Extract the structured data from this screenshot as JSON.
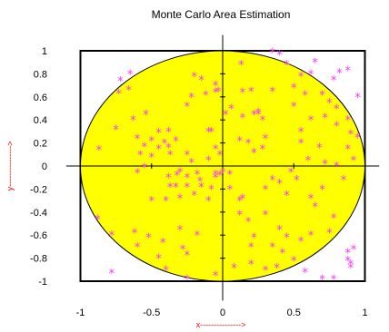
{
  "chart_data": {
    "type": "scatter",
    "title": "Monte Carlo Area Estimation",
    "xlabel": "x--------------->",
    "ylabel": "y--------------->",
    "xlim": [
      -1.1,
      1.1
    ],
    "ylim": [
      -1.2,
      1.2
    ],
    "xticks": [
      -1,
      -0.5,
      0,
      0.5,
      1
    ],
    "xtick_labels": [
      "-1",
      "-0.5",
      "0",
      "0.5",
      "1"
    ],
    "yticks": [
      1,
      0.8,
      0.6,
      0.4,
      0.2,
      0,
      -0.2,
      -0.4,
      -0.6,
      -0.8,
      -1
    ],
    "ytick_labels": [
      "1",
      "0.8",
      "0.6",
      "0.4",
      "0.2",
      "0",
      "-0.2",
      "-0.4",
      "-0.6",
      "-0.8",
      "-1"
    ],
    "grid": false,
    "shapes": {
      "square": {
        "xmin": -1,
        "xmax": 1,
        "ymin": -1,
        "ymax": 1
      },
      "circle": {
        "cx": 0,
        "cy": 0,
        "r": 1
      }
    },
    "colors": {
      "circle_fill": "#ffff00",
      "marker": "#ff33ff",
      "axis": "#000000",
      "label_x": "#ff0000",
      "label_y": "#ff0000"
    },
    "marker": "asterisk",
    "points": [
      [
        -0.72,
        0.74
      ],
      [
        -0.65,
        0.8
      ],
      [
        -0.73,
        0.63
      ],
      [
        -0.66,
        0.66
      ],
      [
        -0.63,
        0.4
      ],
      [
        -0.54,
        0.45
      ],
      [
        -0.6,
        0.24
      ],
      [
        -0.75,
        0.32
      ],
      [
        -0.87,
        0.14
      ],
      [
        -0.45,
        0.29
      ],
      [
        -0.5,
        0.22
      ],
      [
        -0.55,
        0.17
      ],
      [
        -0.45,
        0.15
      ],
      [
        -0.38,
        0.16
      ],
      [
        -0.41,
        0.2
      ],
      [
        -0.33,
        0.22
      ],
      [
        -0.37,
        0.1
      ],
      [
        -0.5,
        0.08
      ],
      [
        -0.55,
        -0.01
      ],
      [
        -0.6,
        -0.06
      ],
      [
        -0.58,
        0.1
      ],
      [
        -0.38,
        0.3
      ],
      [
        -0.25,
        0.1
      ],
      [
        -0.4,
        -0.3
      ],
      [
        -0.5,
        -0.3
      ],
      [
        -0.37,
        -0.18
      ],
      [
        -0.33,
        -0.18
      ],
      [
        -0.25,
        -0.18
      ],
      [
        -0.2,
        -0.25
      ],
      [
        -0.15,
        -0.18
      ],
      [
        -0.22,
        0.03
      ],
      [
        -0.3,
        -0.05
      ],
      [
        -0.25,
        -0.1
      ],
      [
        -0.3,
        -0.28
      ],
      [
        -0.1,
        -0.3
      ],
      [
        -0.02,
        -0.08
      ],
      [
        -0.05,
        -0.07
      ],
      [
        0.0,
        -0.05
      ],
      [
        -0.08,
        -0.2
      ],
      [
        -0.38,
        -0.1
      ],
      [
        -0.32,
        -0.08
      ],
      [
        -0.18,
        -0.07
      ],
      [
        -0.16,
        -0.13
      ],
      [
        -0.05,
        -0.1
      ],
      [
        0.05,
        -0.07
      ],
      [
        -0.1,
        0.3
      ],
      [
        -0.08,
        0.3
      ],
      [
        -0.25,
        0.52
      ],
      [
        -0.22,
        0.6
      ],
      [
        -0.2,
        0.78
      ],
      [
        -0.15,
        0.75
      ],
      [
        -0.12,
        0.62
      ],
      [
        -0.05,
        0.7
      ],
      [
        -0.05,
        0.64
      ],
      [
        -0.03,
        0.65
      ],
      [
        0.13,
        0.88
      ],
      [
        0.14,
        0.64
      ],
      [
        0.06,
        0.5
      ],
      [
        0.02,
        0.45
      ],
      [
        0.14,
        0.42
      ],
      [
        0.22,
        0.45
      ],
      [
        0.25,
        0.47
      ],
      [
        0.25,
        0.45
      ],
      [
        0.28,
        0.4
      ],
      [
        0.3,
        0.24
      ],
      [
        0.35,
        0.99
      ],
      [
        0.4,
        0.97
      ],
      [
        0.45,
        0.88
      ],
      [
        0.55,
        0.78
      ],
      [
        0.62,
        0.8
      ],
      [
        0.65,
        0.9
      ],
      [
        0.78,
        0.75
      ],
      [
        0.82,
        0.81
      ],
      [
        0.88,
        0.83
      ],
      [
        0.95,
        0.6
      ],
      [
        0.5,
        0.68
      ],
      [
        0.35,
        0.65
      ],
      [
        0.2,
        0.65
      ],
      [
        0.58,
        0.62
      ],
      [
        0.7,
        0.62
      ],
      [
        0.5,
        0.52
      ],
      [
        0.72,
        0.42
      ],
      [
        0.75,
        0.55
      ],
      [
        0.8,
        0.5
      ],
      [
        0.88,
        0.4
      ],
      [
        0.9,
        0.28
      ],
      [
        0.95,
        0.25
      ],
      [
        0.8,
        0.35
      ],
      [
        0.62,
        0.4
      ],
      [
        0.55,
        0.3
      ],
      [
        0.55,
        0.2
      ],
      [
        0.68,
        0.16
      ],
      [
        0.6,
        0.05
      ],
      [
        0.72,
        0.02
      ],
      [
        0.8,
        0.0
      ],
      [
        0.88,
        0.15
      ],
      [
        0.92,
        0.05
      ],
      [
        0.85,
        -0.12
      ],
      [
        0.7,
        -0.2
      ],
      [
        0.62,
        -0.28
      ],
      [
        0.65,
        -0.35
      ],
      [
        0.78,
        -0.45
      ],
      [
        0.75,
        -0.58
      ],
      [
        0.62,
        -0.6
      ],
      [
        0.55,
        -0.65
      ],
      [
        0.3,
        -0.2
      ],
      [
        0.45,
        -0.25
      ],
      [
        0.4,
        -0.15
      ],
      [
        0.48,
        -0.05
      ],
      [
        0.35,
        -0.12
      ],
      [
        0.3,
        -0.42
      ],
      [
        0.4,
        -0.55
      ],
      [
        0.45,
        -0.62
      ],
      [
        0.35,
        -0.7
      ],
      [
        0.2,
        -0.7
      ],
      [
        0.18,
        -0.48
      ],
      [
        0.22,
        -0.62
      ],
      [
        0.12,
        -0.42
      ],
      [
        0.05,
        -0.2
      ],
      [
        0.14,
        -0.28
      ],
      [
        0.38,
        -0.88
      ],
      [
        0.42,
        -0.75
      ],
      [
        0.3,
        -0.9
      ],
      [
        0.2,
        -0.85
      ],
      [
        0.08,
        -0.88
      ],
      [
        0.12,
        -0.3
      ],
      [
        0.5,
        -0.82
      ],
      [
        0.58,
        -0.92
      ],
      [
        0.88,
        -0.82
      ],
      [
        0.88,
        -0.75
      ],
      [
        0.92,
        -0.72
      ],
      [
        0.9,
        -0.85
      ],
      [
        0.9,
        -0.88
      ],
      [
        0.78,
        -0.98
      ],
      [
        0.7,
        -0.98
      ],
      [
        0.52,
        -0.12
      ],
      [
        0.22,
        0.12
      ],
      [
        0.28,
        0.15
      ],
      [
        0.18,
        0.2
      ],
      [
        0.12,
        0.22
      ],
      [
        -0.05,
        0.15
      ],
      [
        -0.02,
        0.1
      ],
      [
        -0.1,
        0.05
      ],
      [
        -0.28,
        -0.72
      ],
      [
        -0.25,
        -0.77
      ],
      [
        -0.18,
        -0.6
      ],
      [
        -0.3,
        -0.55
      ],
      [
        -0.42,
        -0.66
      ],
      [
        -0.45,
        -0.8
      ],
      [
        -0.4,
        -0.9
      ],
      [
        -0.88,
        -0.46
      ],
      [
        -0.78,
        -0.6
      ],
      [
        -0.78,
        -0.93
      ],
      [
        -0.25,
        -0.98
      ],
      [
        -0.05,
        -0.95
      ],
      [
        -0.62,
        -0.58
      ],
      [
        -0.52,
        -0.62
      ],
      [
        -0.6,
        -0.7
      ]
    ]
  }
}
